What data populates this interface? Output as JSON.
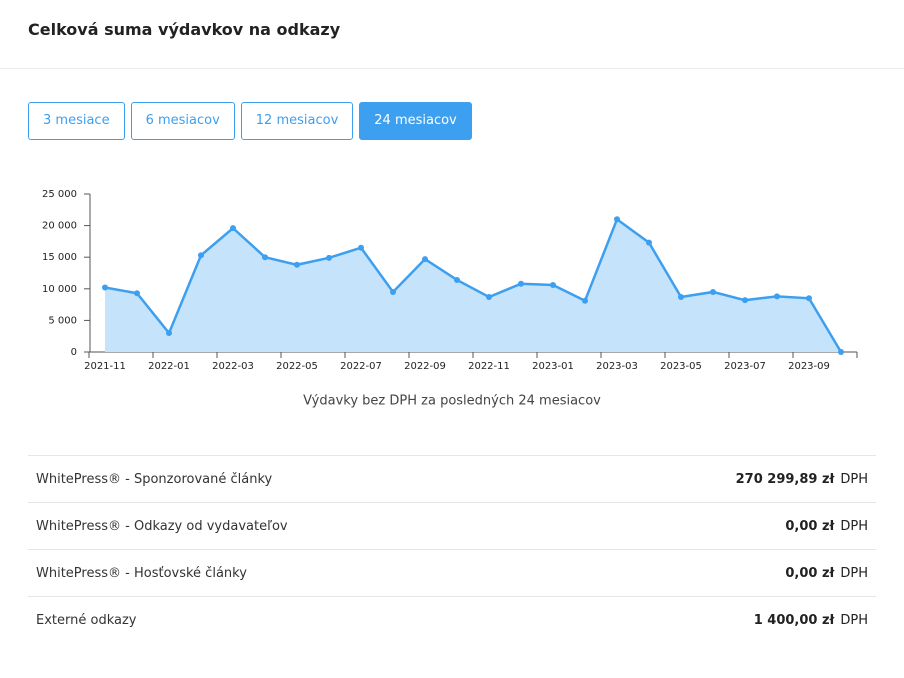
{
  "header": {
    "title": "Celková suma výdavkov na odkazy"
  },
  "buttons": [
    {
      "label": "3 mesiace",
      "active": false
    },
    {
      "label": "6 mesiacov",
      "active": false
    },
    {
      "label": "12 mesiacov",
      "active": false
    },
    {
      "label": "24 mesiacov",
      "active": true
    }
  ],
  "chart_data": {
    "type": "area",
    "x_label": "Výdavky bez DPH za posledných 24 mesiacov",
    "categories": [
      "2021-11",
      null,
      "2022-01",
      null,
      "2022-03",
      null,
      "2022-05",
      null,
      "2022-07",
      null,
      "2022-09",
      null,
      "2022-11",
      null,
      "2023-01",
      null,
      "2023-03",
      null,
      "2023-05",
      null,
      "2023-07",
      null,
      "2023-09",
      null
    ],
    "values": [
      10200,
      9300,
      3000,
      15300,
      19600,
      15000,
      13800,
      14900,
      16500,
      9500,
      14700,
      11400,
      8700,
      10800,
      10600,
      8100,
      21000,
      17300,
      8700,
      9500,
      8200,
      8800,
      8500,
      0
    ],
    "color": "#3d9ff0",
    "fill": "#c5e3fb",
    "ylim": [
      0,
      25000
    ],
    "yticks": [
      0,
      {
        "value": 5000,
        "label": "5 000"
      },
      {
        "value": 10000,
        "label": "10 000"
      },
      {
        "value": 15000,
        "label": "15 000"
      },
      {
        "value": 20000,
        "label": "20 000"
      },
      {
        "value": 25000,
        "label": "25 000"
      }
    ]
  },
  "table": {
    "rows": [
      {
        "label": "WhitePress® - Sponzorované články",
        "amount": "270 299,89 zł",
        "tax": "DPH"
      },
      {
        "label": "WhitePress® - Odkazy od vydavateľov",
        "amount": "0,00 zł",
        "tax": "DPH"
      },
      {
        "label": "WhitePress® - Hosťovské články",
        "amount": "0,00 zł",
        "tax": "DPH"
      },
      {
        "label": "Externé odkazy",
        "amount": "1 400,00 zł",
        "tax": "DPH"
      }
    ]
  }
}
